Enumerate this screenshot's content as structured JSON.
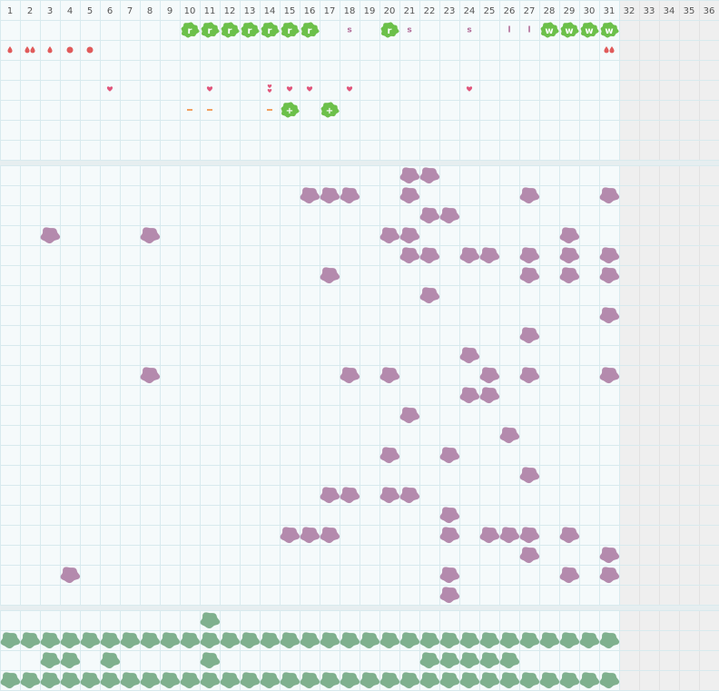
{
  "columns": [
    1,
    2,
    3,
    4,
    5,
    6,
    7,
    8,
    9,
    10,
    11,
    12,
    13,
    14,
    15,
    16,
    17,
    18,
    19,
    20,
    21,
    22,
    23,
    24,
    25,
    26,
    27,
    28,
    29,
    30,
    31,
    32,
    33,
    34,
    35,
    36
  ],
  "active_days": 31,
  "colors": {
    "badge": "#6cc04a",
    "letter": "#b06a97",
    "drop": "#e05b5b",
    "heart": "#e0557a",
    "dash": "#f08a3c",
    "purple": "#b48aad",
    "green": "#7fb08e"
  },
  "symbols": {
    "rows": [
      [
        {
          "day": 10,
          "icon": "badge",
          "text": "r"
        },
        {
          "day": 11,
          "icon": "badge",
          "text": "r"
        },
        {
          "day": 12,
          "icon": "badge",
          "text": "r"
        },
        {
          "day": 13,
          "icon": "badge",
          "text": "r"
        },
        {
          "day": 14,
          "icon": "badge",
          "text": "r"
        },
        {
          "day": 15,
          "icon": "badge",
          "text": "r"
        },
        {
          "day": 16,
          "icon": "badge",
          "text": "r"
        },
        {
          "day": 18,
          "icon": "letter",
          "text": "s"
        },
        {
          "day": 20,
          "icon": "badge",
          "text": "r"
        },
        {
          "day": 21,
          "icon": "letter",
          "text": "s"
        },
        {
          "day": 24,
          "icon": "letter",
          "text": "s"
        },
        {
          "day": 26,
          "icon": "letter",
          "text": "l"
        },
        {
          "day": 27,
          "icon": "letter",
          "text": "l"
        },
        {
          "day": 28,
          "icon": "badge",
          "text": "w"
        },
        {
          "day": 29,
          "icon": "badge",
          "text": "w"
        },
        {
          "day": 30,
          "icon": "badge",
          "text": "w"
        },
        {
          "day": 31,
          "icon": "badge",
          "text": "w"
        }
      ],
      [
        {
          "day": 1,
          "icon": "drop"
        },
        {
          "day": 2,
          "icon": "drop2"
        },
        {
          "day": 3,
          "icon": "drop"
        },
        {
          "day": 4,
          "icon": "dot"
        },
        {
          "day": 5,
          "icon": "dot"
        },
        {
          "day": 31,
          "icon": "drop2"
        }
      ],
      [],
      [
        {
          "day": 6,
          "icon": "heart"
        },
        {
          "day": 11,
          "icon": "heart"
        },
        {
          "day": 14,
          "icon": "heart2"
        },
        {
          "day": 15,
          "icon": "heart"
        },
        {
          "day": 16,
          "icon": "heart"
        },
        {
          "day": 18,
          "icon": "heart"
        },
        {
          "day": 24,
          "icon": "heart"
        }
      ],
      [
        {
          "day": 10,
          "icon": "dash"
        },
        {
          "day": 11,
          "icon": "dash"
        },
        {
          "day": 14,
          "icon": "dash"
        },
        {
          "day": 15,
          "icon": "badge",
          "text": "+"
        },
        {
          "day": 17,
          "icon": "badge",
          "text": "+"
        }
      ],
      [],
      []
    ]
  },
  "purple_rows": [
    [
      21,
      22
    ],
    [
      16,
      17,
      18,
      21,
      27,
      31
    ],
    [
      22,
      23
    ],
    [
      3,
      8,
      20,
      21,
      29
    ],
    [
      21,
      22,
      24,
      25,
      27,
      29,
      31
    ],
    [
      17,
      27,
      29,
      31
    ],
    [
      22
    ],
    [
      31
    ],
    [
      27
    ],
    [
      24
    ],
    [
      8,
      18,
      20,
      25,
      27,
      31
    ],
    [
      24,
      25
    ],
    [
      21
    ],
    [
      26
    ],
    [
      20,
      23
    ],
    [
      27
    ],
    [
      17,
      18,
      20,
      21
    ],
    [
      23
    ],
    [
      15,
      16,
      17,
      23,
      25,
      26,
      27,
      29
    ],
    [
      27,
      31
    ],
    [
      4,
      23,
      29,
      31
    ],
    [
      23
    ]
  ],
  "green_rows": [
    [
      11
    ],
    [
      1,
      2,
      3,
      4,
      5,
      6,
      7,
      8,
      9,
      10,
      11,
      12,
      13,
      14,
      15,
      16,
      17,
      18,
      19,
      20,
      21,
      22,
      23,
      24,
      25,
      26,
      27,
      28,
      29,
      30,
      31
    ],
    [
      3,
      4,
      6,
      11,
      22,
      23,
      24,
      25,
      26
    ],
    [
      1,
      2,
      3,
      4,
      5,
      6,
      7,
      8,
      9,
      10,
      11,
      12,
      13,
      14,
      15,
      16,
      17,
      18,
      19,
      20,
      21,
      22,
      23,
      24,
      25,
      26,
      27,
      28,
      29,
      30,
      31
    ]
  ]
}
